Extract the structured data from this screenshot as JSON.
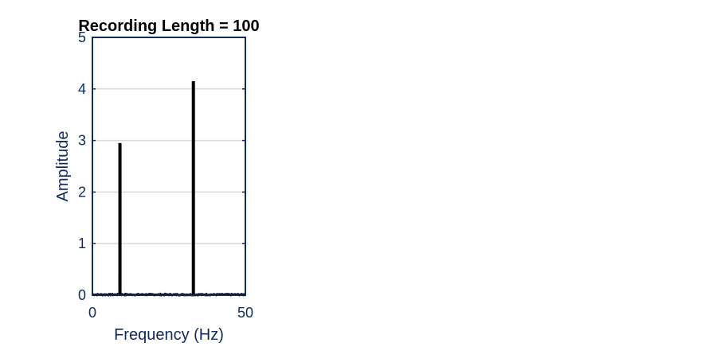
{
  "colors": {
    "axis": "#0f2a5c",
    "grid": "#d9d9d9",
    "line": "#000000",
    "title": "#000000",
    "background": "#ffffff"
  },
  "chart_data": {
    "type": "line",
    "title": "Recording Length = 100",
    "xlabel": "Frequency (Hz)",
    "ylabel": "Amplitude",
    "xlim": [
      0,
      50
    ],
    "ylim": [
      0,
      5
    ],
    "xticks": [
      "0",
      "50"
    ],
    "yticks": [
      "0",
      "1",
      "2",
      "3",
      "4",
      "5"
    ],
    "grid": "horizontal",
    "legend": "none",
    "series": [
      {
        "peaks": [
          {
            "x": 9.0,
            "y": 2.95
          },
          {
            "x": 33.0,
            "y": 4.15
          }
        ],
        "baseline": 0.02
      }
    ]
  }
}
